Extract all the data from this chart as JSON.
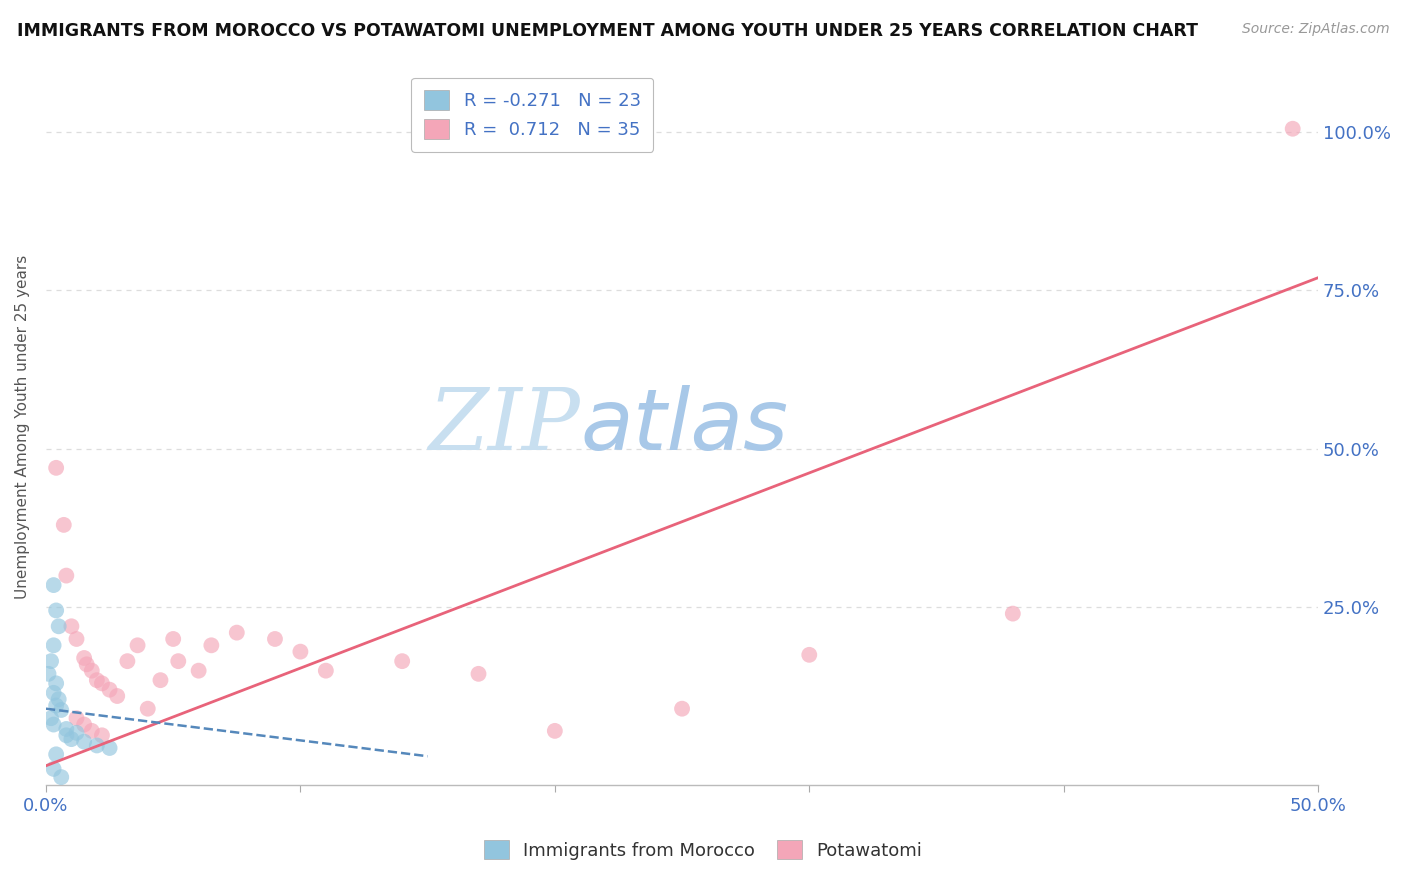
{
  "title": "IMMIGRANTS FROM MOROCCO VS POTAWATOMI UNEMPLOYMENT AMONG YOUTH UNDER 25 YEARS CORRELATION CHART",
  "source": "Source: ZipAtlas.com",
  "ylabel": "Unemployment Among Youth under 25 years",
  "xlim": [
    0.0,
    0.5
  ],
  "ylim": [
    -0.03,
    1.1
  ],
  "yticks": [
    0.0,
    0.25,
    0.5,
    0.75,
    1.0
  ],
  "ytick_labels": [
    "",
    "25.0%",
    "50.0%",
    "75.0%",
    "100.0%"
  ],
  "r_blue": -0.271,
  "n_blue": 23,
  "r_pink": 0.712,
  "n_pink": 35,
  "blue_color": "#92c5de",
  "pink_color": "#f4a6b8",
  "blue_line_color": "#5588bb",
  "pink_line_color": "#e8637a",
  "blue_scatter_x": [
    0.003,
    0.004,
    0.005,
    0.003,
    0.002,
    0.001,
    0.004,
    0.003,
    0.005,
    0.004,
    0.006,
    0.002,
    0.003,
    0.008,
    0.012,
    0.008,
    0.01,
    0.015,
    0.02,
    0.025,
    0.004,
    0.003,
    0.006
  ],
  "blue_scatter_y": [
    0.285,
    0.245,
    0.22,
    0.19,
    0.165,
    0.145,
    0.13,
    0.115,
    0.105,
    0.095,
    0.088,
    0.075,
    0.065,
    0.058,
    0.052,
    0.048,
    0.042,
    0.038,
    0.032,
    0.028,
    0.018,
    -0.005,
    -0.018
  ],
  "pink_scatter_x": [
    0.004,
    0.007,
    0.008,
    0.01,
    0.012,
    0.015,
    0.016,
    0.018,
    0.02,
    0.022,
    0.025,
    0.028,
    0.032,
    0.036,
    0.04,
    0.045,
    0.05,
    0.052,
    0.06,
    0.065,
    0.075,
    0.09,
    0.1,
    0.11,
    0.14,
    0.17,
    0.2,
    0.25,
    0.3,
    0.38,
    0.012,
    0.015,
    0.018,
    0.022,
    0.49
  ],
  "pink_scatter_y": [
    0.47,
    0.38,
    0.3,
    0.22,
    0.2,
    0.17,
    0.16,
    0.15,
    0.135,
    0.13,
    0.12,
    0.11,
    0.165,
    0.19,
    0.09,
    0.135,
    0.2,
    0.165,
    0.15,
    0.19,
    0.21,
    0.2,
    0.18,
    0.15,
    0.165,
    0.145,
    0.055,
    0.09,
    0.175,
    0.24,
    0.075,
    0.065,
    0.055,
    0.048,
    1.005
  ],
  "pink_line_x0": 0.0,
  "pink_line_y0": 0.0,
  "pink_line_x1": 0.5,
  "pink_line_y1": 0.77,
  "blue_line_x0": 0.0,
  "blue_line_y0": 0.09,
  "blue_line_x1": 0.15,
  "blue_line_y1": 0.015,
  "background_color": "#ffffff",
  "watermark_zip": "ZIP",
  "watermark_atlas": "atlas",
  "watermark_zip_color": "#c8dff0",
  "watermark_atlas_color": "#a8c8e8",
  "grid_color": "#dddddd"
}
